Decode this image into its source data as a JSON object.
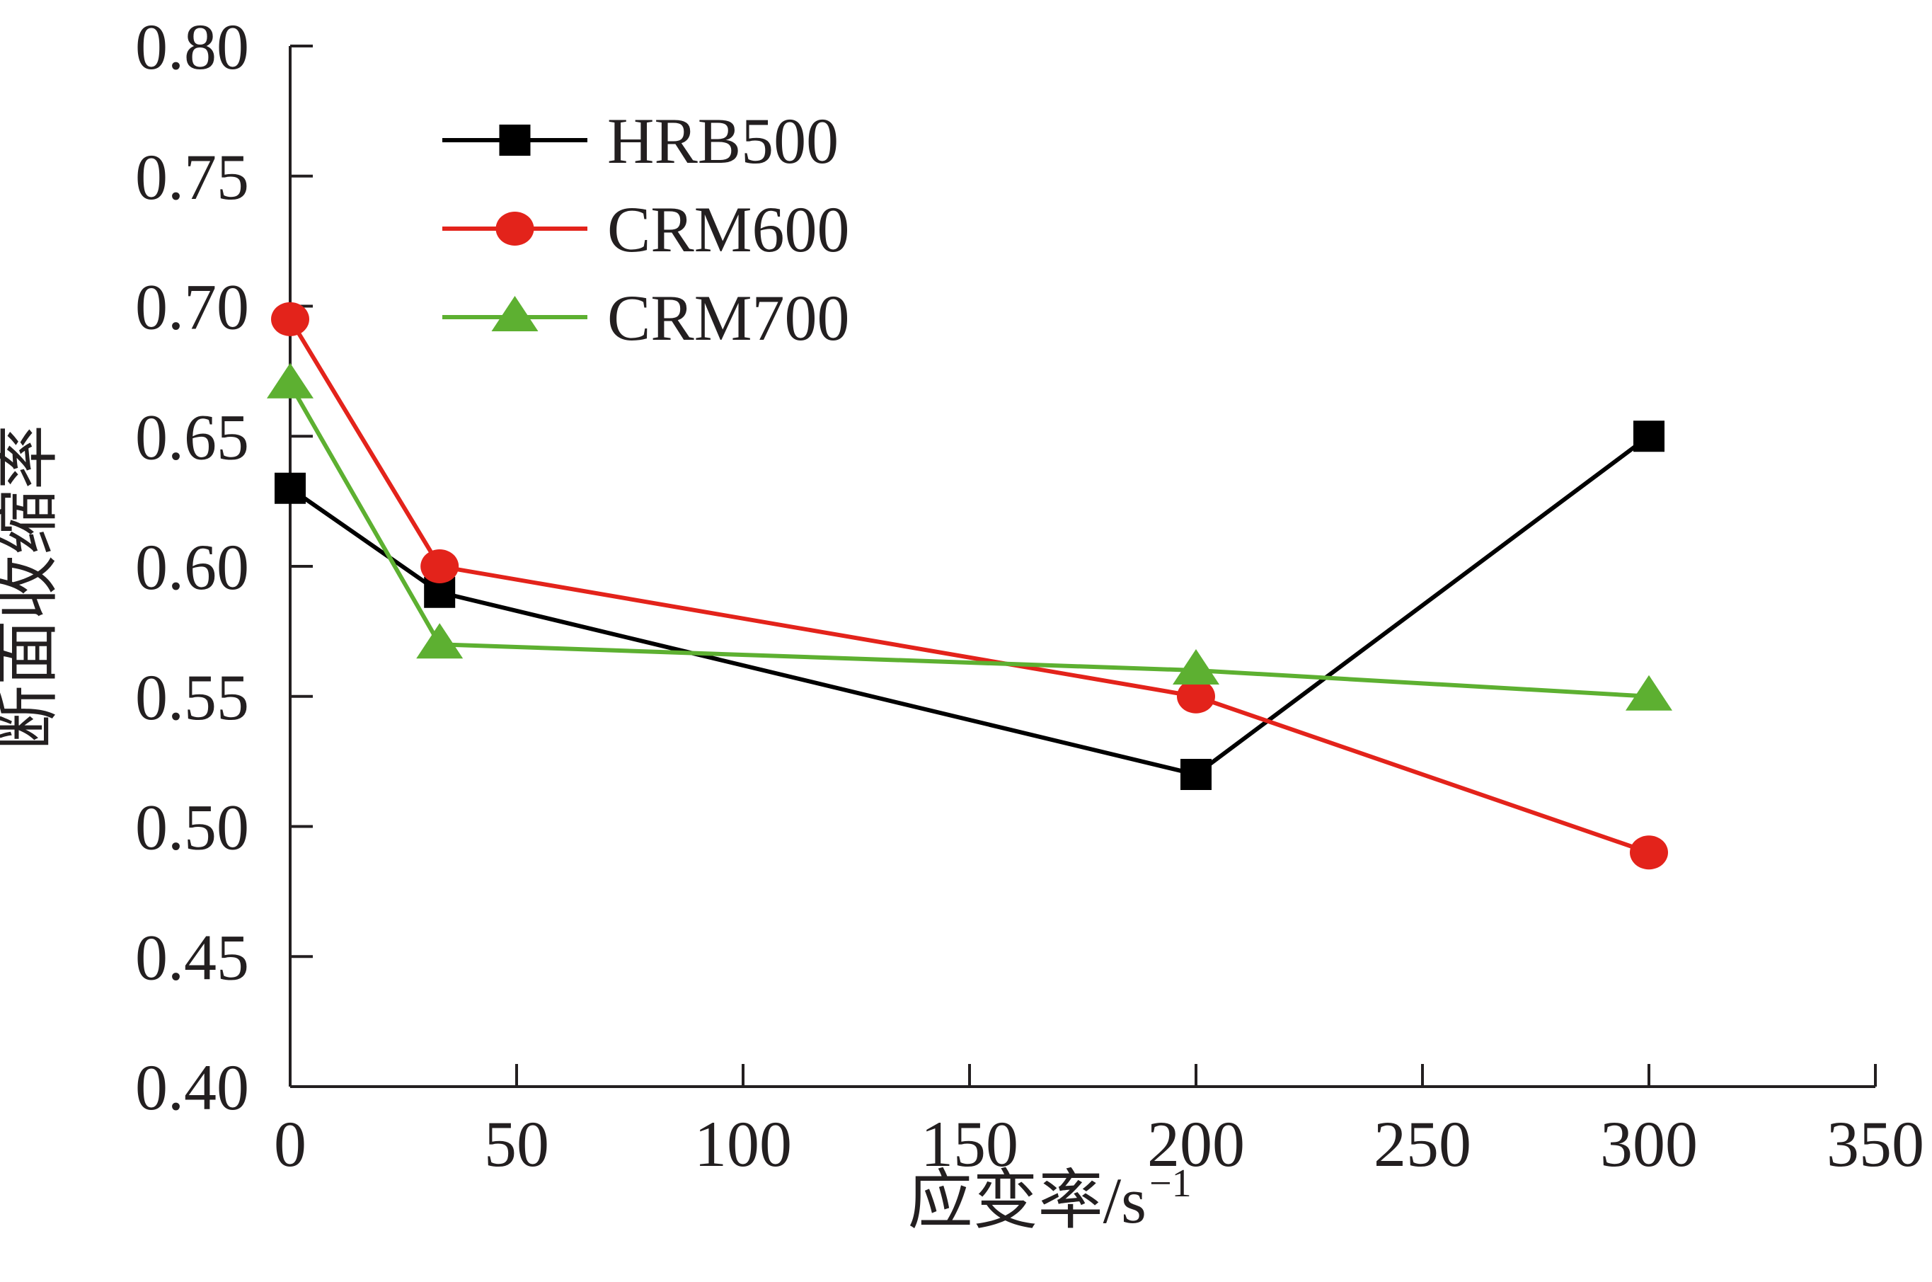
{
  "chart_data": {
    "type": "line",
    "title": "",
    "xlabel": "应变率/s",
    "xlabel_superscript": "−1",
    "ylabel": "断面收缩率",
    "xlim": [
      0,
      350
    ],
    "ylim": [
      0.4,
      0.8
    ],
    "x_ticks": [
      "0",
      "50",
      "100",
      "150",
      "200",
      "250",
      "300",
      "350"
    ],
    "y_ticks": [
      "0.40",
      "0.45",
      "0.50",
      "0.55",
      "0.60",
      "0.65",
      "0.70",
      "0.75",
      "0.80"
    ],
    "grid": false,
    "legend_position": "top-left",
    "series": [
      {
        "name": "HRB500",
        "color": "#000000",
        "marker": "square",
        "x": [
          0,
          33,
          200,
          300
        ],
        "y": [
          0.63,
          0.59,
          0.52,
          0.65
        ]
      },
      {
        "name": "CRM600",
        "color": "#e3231b",
        "marker": "circle",
        "x": [
          0,
          33,
          200,
          300
        ],
        "y": [
          0.695,
          0.6,
          0.55,
          0.49
        ]
      },
      {
        "name": "CRM700",
        "color": "#5db031",
        "marker": "triangle",
        "x": [
          0,
          33,
          200,
          300
        ],
        "y": [
          0.67,
          0.57,
          0.56,
          0.55
        ]
      }
    ]
  }
}
